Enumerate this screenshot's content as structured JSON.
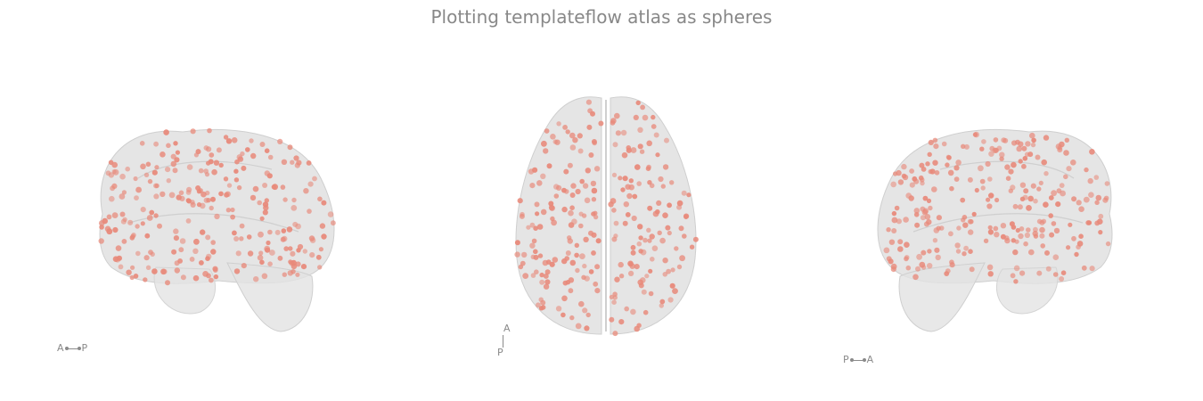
{
  "title": "Plotting templateflow atlas as spheres",
  "colors": {
    "brain": "#d9d9d9",
    "brain_edge": "#cfcfcf",
    "sphere": "#e8897a",
    "label": "#8a8a8a"
  },
  "views": [
    {
      "name": "left-sagittal",
      "orientation": {
        "from": "A",
        "to": "P"
      }
    },
    {
      "name": "axial",
      "orientation": {
        "from": "A",
        "to": "P"
      }
    },
    {
      "name": "right-sagittal",
      "orientation": {
        "from": "P",
        "to": "A"
      }
    }
  ]
}
